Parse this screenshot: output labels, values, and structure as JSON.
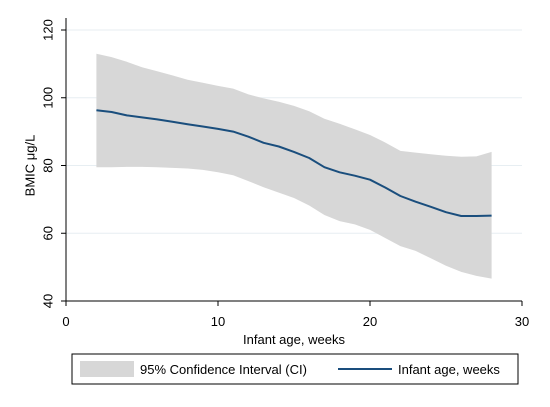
{
  "chart_data": {
    "type": "line",
    "title": "",
    "xlabel": "Infant age, weeks",
    "ylabel": "BMIC μg/L",
    "xlim": [
      0,
      30
    ],
    "ylim": [
      40,
      120
    ],
    "x_ticks": [
      "0",
      "10",
      "20",
      "30"
    ],
    "y_ticks": [
      "40",
      "60",
      "80",
      "100",
      "120"
    ],
    "grid": true,
    "legend_position": "bottom",
    "series": [
      {
        "name": "Infant age, weeks",
        "kind": "line",
        "color": "#1a4e7d",
        "x": [
          2,
          3,
          4,
          5,
          6,
          7,
          8,
          9,
          10,
          11,
          12,
          13,
          14,
          15,
          16,
          17,
          18,
          19,
          20,
          21,
          22,
          23,
          24,
          25,
          26,
          27,
          28
        ],
        "y": [
          96.3,
          95.8,
          94.8,
          94.2,
          93.6,
          92.9,
          92.2,
          91.5,
          90.8,
          90.0,
          88.5,
          86.7,
          85.6,
          84.0,
          82.2,
          79.5,
          78.0,
          77.0,
          75.8,
          73.5,
          71.0,
          69.3,
          67.8,
          66.2,
          65.1,
          65.1,
          65.2
        ]
      },
      {
        "name": "95% Confidence Interval (CI)",
        "kind": "band",
        "color": "#d7d7d7",
        "x": [
          2,
          3,
          4,
          5,
          6,
          7,
          8,
          9,
          10,
          11,
          12,
          13,
          14,
          15,
          16,
          17,
          18,
          19,
          20,
          21,
          22,
          23,
          24,
          25,
          26,
          27,
          28
        ],
        "upper": [
          113.0,
          112.0,
          110.6,
          109.0,
          107.8,
          106.6,
          105.3,
          104.4,
          103.5,
          102.7,
          101.0,
          99.8,
          98.8,
          97.6,
          96.0,
          93.8,
          92.3,
          90.7,
          89.0,
          86.8,
          84.3,
          83.8,
          83.3,
          82.9,
          82.6,
          82.7,
          84.0
        ],
        "lower": [
          79.5,
          79.5,
          79.6,
          79.6,
          79.5,
          79.3,
          79.1,
          78.7,
          78.0,
          77.1,
          75.4,
          73.6,
          72.0,
          70.4,
          68.2,
          65.4,
          63.6,
          62.6,
          61.0,
          58.6,
          56.2,
          54.8,
          52.6,
          50.4,
          48.6,
          47.4,
          46.6
        ]
      }
    ]
  }
}
